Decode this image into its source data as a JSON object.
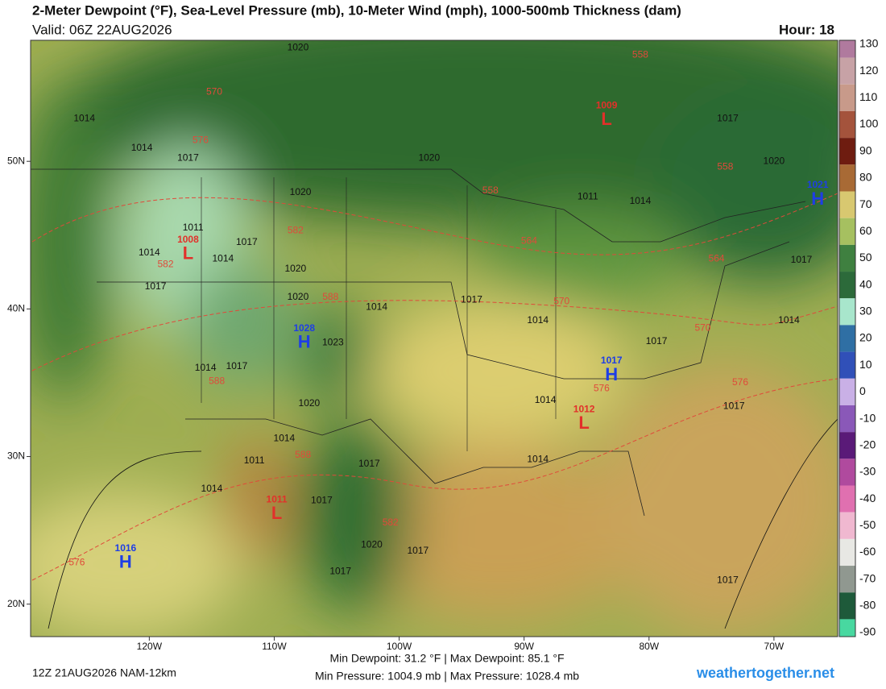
{
  "header": {
    "title": "2-Meter Dewpoint (°F), Sea-Level Pressure (mb), 10-Meter Wind (mph), 1000-500mb Thickness (dam)",
    "valid": "Valid: 06Z 22AUG2026",
    "hour": "Hour: 18"
  },
  "map": {
    "xlim": [
      -129.5,
      -64.9
    ],
    "ylim": [
      17.8,
      58.2
    ],
    "xticks": [
      {
        "value": -120,
        "label": "120W"
      },
      {
        "value": -110,
        "label": "110W"
      },
      {
        "value": -100,
        "label": "100W"
      },
      {
        "value": -90,
        "label": "90W"
      },
      {
        "value": -80,
        "label": "80W"
      },
      {
        "value": -70,
        "label": "70W"
      }
    ],
    "yticks": [
      {
        "value": 50,
        "label": "50N"
      },
      {
        "value": 40,
        "label": "40N"
      },
      {
        "value": 30,
        "label": "30N"
      },
      {
        "value": 20,
        "label": "20N"
      }
    ],
    "center_colors": {
      "H": "#1e3ee6",
      "L": "#e2302a"
    },
    "isobar_color": "#111111",
    "thickness_color": "#e04a3a",
    "centers": [
      {
        "letter": "L",
        "value": 1009,
        "lon": -83.4,
        "lat": 52.9
      },
      {
        "letter": "H",
        "value": 1021,
        "lon": -66.5,
        "lat": 47.5
      },
      {
        "letter": "L",
        "value": 1008,
        "lon": -116.9,
        "lat": 43.8
      },
      {
        "letter": "H",
        "value": 1028,
        "lon": -107.6,
        "lat": 37.8
      },
      {
        "letter": "H",
        "value": 1017,
        "lon": -83.0,
        "lat": 35.6
      },
      {
        "letter": "L",
        "value": 1012,
        "lon": -85.2,
        "lat": 32.3
      },
      {
        "letter": "L",
        "value": 1011,
        "lon": -109.8,
        "lat": 26.2
      },
      {
        "letter": "H",
        "value": 1016,
        "lon": -121.9,
        "lat": 22.9
      }
    ],
    "isobar_labels": [
      {
        "value": 1020,
        "lon": -108.1,
        "lat": 57.7
      },
      {
        "value": 1014,
        "lon": -125.2,
        "lat": 52.9
      },
      {
        "value": 1014,
        "lon": -120.6,
        "lat": 50.9
      },
      {
        "value": 1017,
        "lon": -116.9,
        "lat": 50.2
      },
      {
        "value": 1020,
        "lon": -97.6,
        "lat": 50.2
      },
      {
        "value": 1020,
        "lon": -107.9,
        "lat": 47.9
      },
      {
        "value": 1011,
        "lon": -116.5,
        "lat": 45.5
      },
      {
        "value": 1017,
        "lon": -112.2,
        "lat": 44.5
      },
      {
        "value": 1014,
        "lon": -114.1,
        "lat": 43.4
      },
      {
        "value": 1014,
        "lon": -120.0,
        "lat": 43.8
      },
      {
        "value": 1017,
        "lon": -119.5,
        "lat": 41.5
      },
      {
        "value": 1020,
        "lon": -108.3,
        "lat": 42.7
      },
      {
        "value": 1020,
        "lon": -108.1,
        "lat": 40.8
      },
      {
        "value": 1023,
        "lon": -105.3,
        "lat": 37.7
      },
      {
        "value": 1014,
        "lon": -101.8,
        "lat": 40.1
      },
      {
        "value": 1017,
        "lon": -94.2,
        "lat": 40.6
      },
      {
        "value": 1014,
        "lon": -88.9,
        "lat": 39.2
      },
      {
        "value": 1017,
        "lon": -79.4,
        "lat": 37.8
      },
      {
        "value": 1011,
        "lon": -84.9,
        "lat": 47.6
      },
      {
        "value": 1014,
        "lon": -80.7,
        "lat": 47.3
      },
      {
        "value": 1017,
        "lon": -73.7,
        "lat": 52.9
      },
      {
        "value": 1020,
        "lon": -70.0,
        "lat": 50.0
      },
      {
        "value": 1017,
        "lon": -67.8,
        "lat": 43.3
      },
      {
        "value": 1014,
        "lon": -68.8,
        "lat": 39.2
      },
      {
        "value": 1017,
        "lon": -73.2,
        "lat": 33.4
      },
      {
        "value": 1014,
        "lon": -88.3,
        "lat": 33.8
      },
      {
        "value": 1014,
        "lon": -88.9,
        "lat": 29.8
      },
      {
        "value": 1017,
        "lon": -102.4,
        "lat": 29.5
      },
      {
        "value": 1014,
        "lon": -109.2,
        "lat": 31.2
      },
      {
        "value": 1011,
        "lon": -111.6,
        "lat": 29.7
      },
      {
        "value": 1014,
        "lon": -115.0,
        "lat": 27.8
      },
      {
        "value": 1017,
        "lon": -106.2,
        "lat": 27.0
      },
      {
        "value": 1020,
        "lon": -102.2,
        "lat": 24.0
      },
      {
        "value": 1017,
        "lon": -98.5,
        "lat": 23.6
      },
      {
        "value": 1017,
        "lon": -104.7,
        "lat": 22.2
      },
      {
        "value": 1017,
        "lon": -73.7,
        "lat": 21.6
      },
      {
        "value": 1020,
        "lon": -107.2,
        "lat": 33.6
      },
      {
        "value": 1017,
        "lon": -113.0,
        "lat": 36.1
      },
      {
        "value": 1014,
        "lon": -115.5,
        "lat": 36.0
      }
    ],
    "thickness_labels": [
      {
        "value": 570,
        "lon": -114.8,
        "lat": 54.7
      },
      {
        "value": 576,
        "lon": -115.9,
        "lat": 51.4
      },
      {
        "value": 558,
        "lon": -80.7,
        "lat": 57.2
      },
      {
        "value": 558,
        "lon": -73.9,
        "lat": 49.6
      },
      {
        "value": 558,
        "lon": -92.7,
        "lat": 48.0
      },
      {
        "value": 564,
        "lon": -89.6,
        "lat": 44.6
      },
      {
        "value": 564,
        "lon": -74.6,
        "lat": 43.4
      },
      {
        "value": 570,
        "lon": -87.0,
        "lat": 40.5
      },
      {
        "value": 570,
        "lon": -75.7,
        "lat": 38.7
      },
      {
        "value": 576,
        "lon": -83.8,
        "lat": 34.6
      },
      {
        "value": 576,
        "lon": -72.7,
        "lat": 35.0
      },
      {
        "value": 582,
        "lon": -108.3,
        "lat": 45.3
      },
      {
        "value": 582,
        "lon": -118.7,
        "lat": 43.0
      },
      {
        "value": 588,
        "lon": -105.5,
        "lat": 40.8
      },
      {
        "value": 588,
        "lon": -114.6,
        "lat": 35.1
      },
      {
        "value": 588,
        "lon": -107.7,
        "lat": 30.1
      },
      {
        "value": 582,
        "lon": -100.7,
        "lat": 25.5
      },
      {
        "value": 576,
        "lon": -125.8,
        "lat": 22.8
      }
    ]
  },
  "colorbar": {
    "lim": [
      -91.5,
      131.5
    ],
    "ticks": [
      130,
      120,
      110,
      100,
      90,
      80,
      70,
      60,
      50,
      40,
      30,
      20,
      10,
      0,
      -10,
      -20,
      -30,
      -40,
      -50,
      -60,
      -70,
      -80,
      -90
    ],
    "colors": [
      "#b07a9e",
      "#c7a2a6",
      "#c89a8a",
      "#a4533c",
      "#6e1c10",
      "#a86a35",
      "#d8c870",
      "#a6c060",
      "#3f8040",
      "#2c6a3a",
      "#a8e6cc",
      "#2f6fa4",
      "#3050b8",
      "#c9b0e6",
      "#8a58b8",
      "#5a1a78",
      "#b04a9e",
      "#e070b0",
      "#f0b8d0",
      "#e8e8e4",
      "#909890",
      "#1e5a3a",
      "#48d8a0"
    ]
  },
  "footer": {
    "run": "12Z 21AUG2026 NAM-12km",
    "dewpoint": "Min Dewpoint:  31.2 °F | Max Dewpoint:  85.1 °F",
    "pressure": "Min Pressure: 1004.9 mb | Max Pressure: 1028.4 mb",
    "site": "weathertogether.net"
  }
}
